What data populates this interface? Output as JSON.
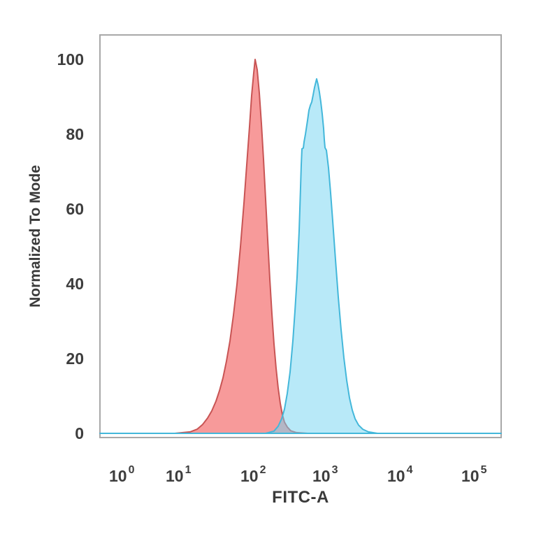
{
  "figure": {
    "background": "#ffffff",
    "frame_color": "#a8a8a8",
    "text_color": "#3d3d3d"
  },
  "chart_data": {
    "type": "area",
    "subtype": "flow-cytometry-histogram-overlay",
    "title": "",
    "xlabel": "FITC-A",
    "ylabel": "Normalized To Mode",
    "x_scale": "log10",
    "x_axis_range_approx": [
      "10^0",
      "10^5"
    ],
    "ylim": [
      0,
      100
    ],
    "grid": false,
    "legend": "none",
    "y_ticks": [
      0,
      20,
      40,
      60,
      80,
      100
    ],
    "x_ticks": [
      {
        "base": "10",
        "exp": "0",
        "frac": 0.0453
      },
      {
        "base": "10",
        "exp": "1",
        "frac": 0.1864
      },
      {
        "base": "10",
        "exp": "2",
        "frac": 0.3728
      },
      {
        "base": "10",
        "exp": "3",
        "frac": 0.5523
      },
      {
        "base": "10",
        "exp": "4",
        "frac": 0.7387
      },
      {
        "base": "10",
        "exp": "5",
        "frac": 0.9233
      }
    ],
    "series": [
      {
        "name": "red-histogram",
        "description": "left peak, salmon red",
        "fill": "rgba(239,53,53,0.5)",
        "stroke": "#c85454",
        "stroke_width": 2,
        "peak_pct": 100,
        "peak_fitc_approx": 120,
        "points": [
          [
            0.0,
            0
          ],
          [
            0.1864,
            0
          ],
          [
            0.2247,
            0.4
          ],
          [
            0.2422,
            1.1
          ],
          [
            0.2561,
            2.4
          ],
          [
            0.2683,
            4.1
          ],
          [
            0.2787,
            6.0
          ],
          [
            0.2892,
            8.6
          ],
          [
            0.2979,
            11.4
          ],
          [
            0.3066,
            14.8
          ],
          [
            0.3153,
            19.3
          ],
          [
            0.324,
            24.7
          ],
          [
            0.3328,
            31.6
          ],
          [
            0.3415,
            39.8
          ],
          [
            0.3502,
            49.9
          ],
          [
            0.3589,
            61.5
          ],
          [
            0.3659,
            71.8
          ],
          [
            0.3728,
            82.1
          ],
          [
            0.378,
            90.3
          ],
          [
            0.3833,
            96.4
          ],
          [
            0.3868,
            100
          ],
          [
            0.392,
            97.2
          ],
          [
            0.3972,
            91.0
          ],
          [
            0.4024,
            82.8
          ],
          [
            0.4077,
            73.3
          ],
          [
            0.4129,
            62.6
          ],
          [
            0.4181,
            51.8
          ],
          [
            0.4233,
            41.3
          ],
          [
            0.4286,
            32.0
          ],
          [
            0.4338,
            23.9
          ],
          [
            0.439,
            17.4
          ],
          [
            0.4443,
            12.1
          ],
          [
            0.4495,
            8.0
          ],
          [
            0.4547,
            5.0
          ],
          [
            0.4599,
            3.0
          ],
          [
            0.4669,
            1.7
          ],
          [
            0.4756,
            0.7
          ],
          [
            0.4895,
            0.2
          ],
          [
            0.5174,
            0
          ],
          [
            1.0,
            0
          ]
        ]
      },
      {
        "name": "blue-histogram",
        "description": "right peak, light cyan blue, notched left shoulder",
        "fill": "rgba(113,211,241,0.5)",
        "stroke": "#43b7da",
        "stroke_width": 2,
        "peak_pct": 95,
        "peak_fitc_approx": 800,
        "points": [
          [
            0.0,
            0
          ],
          [
            0.4129,
            0
          ],
          [
            0.4338,
            0.6
          ],
          [
            0.4443,
            1.9
          ],
          [
            0.453,
            3.9
          ],
          [
            0.4599,
            6.5
          ],
          [
            0.4669,
            10.7
          ],
          [
            0.4739,
            16.4
          ],
          [
            0.4808,
            24.7
          ],
          [
            0.4861,
            32.7
          ],
          [
            0.4913,
            41.7
          ],
          [
            0.4965,
            54.2
          ],
          [
            0.5,
            65.8
          ],
          [
            0.5017,
            71.8
          ],
          [
            0.5035,
            76.1
          ],
          [
            0.507,
            76.3
          ],
          [
            0.5087,
            77.9
          ],
          [
            0.5122,
            80.0
          ],
          [
            0.5174,
            83.7
          ],
          [
            0.5209,
            86.4
          ],
          [
            0.5244,
            87.7
          ],
          [
            0.5279,
            88.6
          ],
          [
            0.5314,
            90.5
          ],
          [
            0.5348,
            92.5
          ],
          [
            0.5401,
            94.8
          ],
          [
            0.5436,
            93.3
          ],
          [
            0.547,
            91.2
          ],
          [
            0.5505,
            88.6
          ],
          [
            0.554,
            85.4
          ],
          [
            0.5575,
            81.5
          ],
          [
            0.5592,
            78.5
          ],
          [
            0.561,
            76.4
          ],
          [
            0.5645,
            75.7
          ],
          [
            0.5697,
            71.0
          ],
          [
            0.5749,
            64.3
          ],
          [
            0.5801,
            56.8
          ],
          [
            0.5871,
            46.4
          ],
          [
            0.5941,
            36.4
          ],
          [
            0.601,
            27.7
          ],
          [
            0.608,
            20.2
          ],
          [
            0.615,
            14.2
          ],
          [
            0.622,
            9.5
          ],
          [
            0.6289,
            6.2
          ],
          [
            0.6359,
            3.9
          ],
          [
            0.6446,
            2.2
          ],
          [
            0.6551,
            1.1
          ],
          [
            0.669,
            0.4
          ],
          [
            0.6916,
            0
          ],
          [
            1.0,
            0
          ]
        ]
      }
    ]
  }
}
